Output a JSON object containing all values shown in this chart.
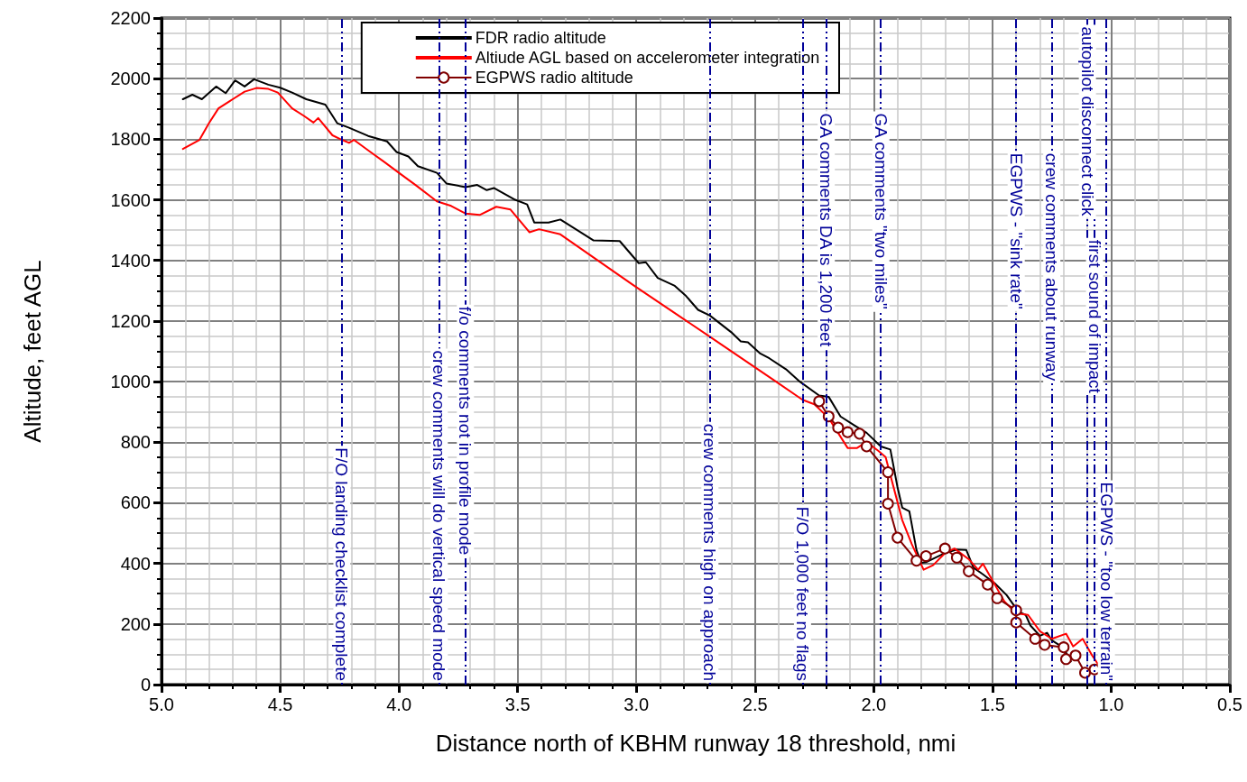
{
  "chart_data": {
    "type": "line",
    "xlabel": "Distance north of KBHM runway 18 threshold, nmi",
    "ylabel": "Altitude, feet AGL",
    "xlim": [
      5,
      0.5
    ],
    "xticks": [
      {
        "value": 5,
        "label": "5.0"
      },
      {
        "value": 4.5,
        "label": "4.5"
      },
      {
        "value": 4,
        "label": "4.0"
      },
      {
        "value": 3.5,
        "label": "3.5"
      },
      {
        "value": 3,
        "label": "3.0"
      },
      {
        "value": 2.5,
        "label": "2.5"
      },
      {
        "value": 2,
        "label": "2.0"
      },
      {
        "value": 1.5,
        "label": "1.5"
      },
      {
        "value": 1,
        "label": "1.0"
      },
      {
        "value": 0.5,
        "label": "0.5"
      }
    ],
    "ylim": [
      0,
      2200
    ],
    "yticks": [
      0,
      200,
      400,
      600,
      800,
      1000,
      1200,
      1400,
      1600,
      1800,
      2000,
      2200
    ],
    "grid": true,
    "legend": "top",
    "marker": "none",
    "line_style": "solid",
    "series": [
      {
        "name": "FDR radio altitude",
        "color": "#000000",
        "x": [
          4.91,
          4.87,
          4.83,
          4.77,
          4.73,
          4.69,
          4.65,
          4.61,
          4.55,
          4.5,
          4.45,
          4.39,
          4.31,
          4.26,
          4.21,
          4.13,
          4.05,
          4.01,
          3.96,
          3.92,
          3.84,
          3.8,
          3.72,
          3.67,
          3.63,
          3.6,
          3.51,
          3.46,
          3.43,
          3.37,
          3.32,
          3.18,
          3.07,
          2.99,
          2.96,
          2.91,
          2.84,
          2.79,
          2.74,
          2.69,
          2.6,
          2.56,
          2.53,
          2.48,
          2.44,
          2.37,
          2.31,
          2.23,
          2.19,
          2.14,
          2.08,
          2.03,
          1.97,
          1.93,
          1.9,
          1.88,
          1.85,
          1.82,
          1.8,
          1.78,
          1.7,
          1.65,
          1.61,
          1.58,
          1.54,
          1.49,
          1.44,
          1.39,
          1.36,
          1.34,
          1.3,
          1.27,
          1.25,
          1.2,
          1.17
        ],
        "values": [
          1932,
          1947,
          1932,
          1974,
          1952,
          1994,
          1974,
          1998,
          1980,
          1970,
          1954,
          1932,
          1914,
          1853,
          1838,
          1811,
          1793,
          1758,
          1743,
          1711,
          1689,
          1654,
          1642,
          1649,
          1632,
          1639,
          1600,
          1585,
          1525,
          1525,
          1535,
          1466,
          1464,
          1391,
          1394,
          1342,
          1317,
          1282,
          1237,
          1218,
          1163,
          1133,
          1130,
          1094,
          1077,
          1041,
          999,
          954,
          950,
          885,
          855,
          831,
          786,
          776,
          652,
          584,
          572,
          444,
          402,
          404,
          434,
          446,
          444,
          386,
          364,
          334,
          295,
          240,
          230,
          195,
          161,
          171,
          146,
          121,
          76
        ]
      },
      {
        "name": "Altiude AGL based on accelerometer integration",
        "color": "#ff0000",
        "x": [
          4.91,
          4.84,
          4.8,
          4.76,
          4.7,
          4.65,
          4.6,
          4.55,
          4.51,
          4.45,
          4.4,
          4.36,
          4.34,
          4.28,
          4.24,
          4.21,
          4.19,
          4.12,
          4.06,
          4,
          3.93,
          3.84,
          3.78,
          3.72,
          3.66,
          3.59,
          3.53,
          3.45,
          3.41,
          3.32,
          3.01,
          2.69,
          2.41,
          2.3,
          2.25,
          2.19,
          2.11,
          2.07,
          2.03,
          1.98,
          1.95,
          1.92,
          1.88,
          1.84,
          1.79,
          1.75,
          1.7,
          1.66,
          1.6,
          1.56,
          1.54,
          1.5,
          1.45,
          1.4,
          1.35,
          1.3,
          1.25,
          1.19,
          1.16,
          1.12,
          1.08,
          1.05
        ],
        "values": [
          1768,
          1798,
          1853,
          1902,
          1932,
          1957,
          1969,
          1966,
          1954,
          1902,
          1877,
          1855,
          1870,
          1813,
          1798,
          1788,
          1798,
          1758,
          1724,
          1689,
          1649,
          1595,
          1580,
          1555,
          1550,
          1577,
          1568,
          1493,
          1503,
          1486,
          1317,
          1148,
          999,
          940,
          925,
          880,
          781,
          781,
          801,
          771,
          751,
          662,
          543,
          464,
          379,
          394,
          434,
          449,
          414,
          379,
          399,
          344,
          275,
          235,
          230,
          176,
          151,
          168,
          126,
          151,
          96,
          61
        ]
      },
      {
        "name": "EGPWS radio altitude",
        "color": "#800000",
        "marker": "circle",
        "x": [
          2.23,
          2.19,
          2.15,
          2.11,
          2.06,
          2.03,
          1.94,
          1.94,
          1.9,
          1.82,
          1.78,
          1.7,
          1.65,
          1.6,
          1.52,
          1.48,
          1.4,
          1.4,
          1.32,
          1.28,
          1.2,
          1.19,
          1.15,
          1.11,
          1.07
        ],
        "values": [
          935,
          885,
          848,
          833,
          828,
          786,
          701,
          597,
          485,
          409,
          424,
          449,
          419,
          374,
          330,
          285,
          245,
          205,
          151,
          131,
          123,
          84,
          96,
          39,
          50
        ]
      }
    ],
    "ref_lines": [
      {
        "axis": "x",
        "value": 4.24,
        "label": "F/O landing checklist complete",
        "color": "#000099",
        "line_style": "dashed"
      },
      {
        "axis": "x",
        "value": 3.83,
        "label": "crew comments will do vertical speed mode",
        "color": "#000099",
        "line_style": "dashed"
      },
      {
        "axis": "x",
        "value": 3.72,
        "label": "f/o comments not in profile mode",
        "color": "#000099",
        "line_style": "dashed"
      },
      {
        "axis": "x",
        "value": 2.69,
        "label": "crew comments high on approach",
        "color": "#000099",
        "line_style": "dashed"
      },
      {
        "axis": "x",
        "value": 2.3,
        "label": "F/O 1,000 feet no flags",
        "color": "#000099",
        "line_style": "dashed"
      },
      {
        "axis": "x",
        "value": 2.2,
        "label": "GA comments DA is 1,200 feet",
        "color": "#000099",
        "line_style": "dashed"
      },
      {
        "axis": "x",
        "value": 1.97,
        "label": "GA comments \"two miles\"",
        "color": "#000099",
        "line_style": "dashed"
      },
      {
        "axis": "x",
        "value": 1.4,
        "label": "EGPWS - \"sink rate\"",
        "color": "#000099",
        "line_style": "dashed"
      },
      {
        "axis": "x",
        "value": 1.25,
        "label": "crew comments about runway",
        "color": "#000099",
        "line_style": "dashed"
      },
      {
        "axis": "x",
        "value": 1.1,
        "label": "autopilot disconnect click",
        "color": "#000099",
        "line_style": "dashed"
      },
      {
        "axis": "x",
        "value": 1.07,
        "label": "first sound of impact",
        "color": "#000099",
        "line_style": "dashed"
      },
      {
        "axis": "x",
        "value": 1.02,
        "label": "EGPWS - \"too low terrain\"",
        "color": "#000099",
        "line_style": "dashed"
      }
    ]
  }
}
